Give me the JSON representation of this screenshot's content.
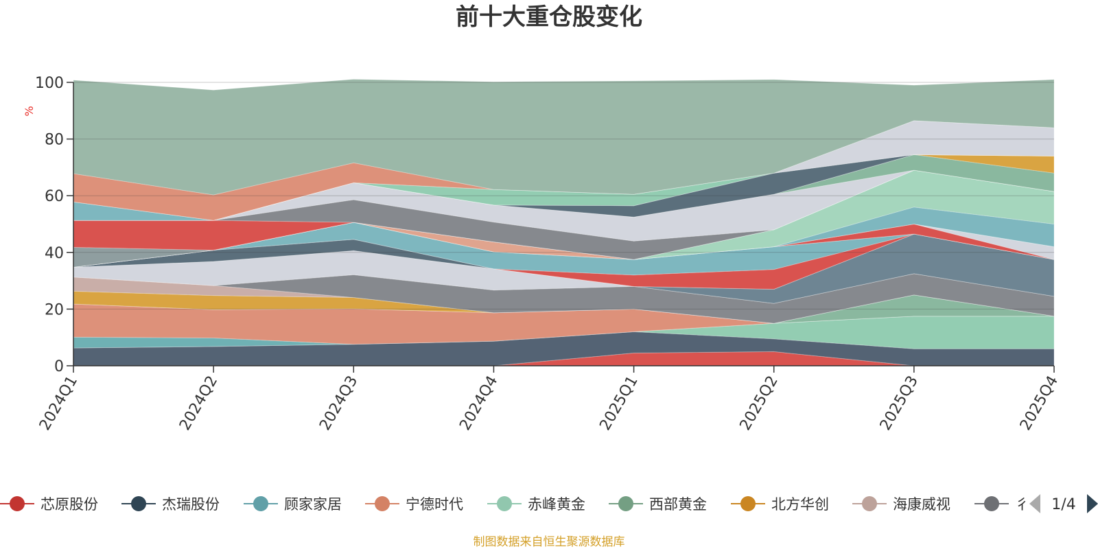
{
  "chart_data": {
    "type": "area",
    "stacked": true,
    "title": "前十大重仓股变化",
    "ylabel": "%",
    "ylim": [
      0,
      100
    ],
    "yticks": [
      0,
      20,
      40,
      60,
      80,
      100
    ],
    "categories": [
      "2024Q1",
      "2024Q2",
      "2024Q3",
      "2024Q4",
      "2025Q1",
      "2025Q2",
      "2025Q3",
      "2025Q4"
    ],
    "series": [
      {
        "name": "芯原股份",
        "color": "#d9534f",
        "values": [
          0,
          0,
          0,
          0,
          4.5,
          5,
          0,
          0
        ]
      },
      {
        "name": "",
        "color": "#546374",
        "values": [
          6.3,
          6.8,
          7.6,
          8.7,
          7.5,
          4.5,
          6.0,
          6.0
        ]
      },
      {
        "name": "",
        "color": "#93cdb2",
        "values": [
          0,
          0,
          0,
          0,
          0,
          5.5,
          11.5,
          11.5
        ]
      },
      {
        "name": "",
        "color": "#6fb1b4",
        "values": [
          3.8,
          3.0,
          0,
          0,
          0,
          0,
          0,
          0
        ]
      },
      {
        "name": "",
        "color": "#dd917a",
        "values": [
          11.7,
          10.0,
          12.5,
          10.0,
          8.0,
          0,
          0,
          0
        ]
      },
      {
        "name": "",
        "color": "#8ab89f",
        "values": [
          0,
          0,
          0,
          0,
          0,
          0,
          7.5,
          0
        ]
      },
      {
        "name": "",
        "color": "#d9a442",
        "values": [
          4.5,
          5.0,
          4.0,
          0,
          0,
          0,
          0,
          0
        ]
      },
      {
        "name": "",
        "color": "#c9aea8",
        "values": [
          5,
          3.5,
          0,
          0,
          0,
          0,
          0,
          0
        ]
      },
      {
        "name": "",
        "color": "#86898e",
        "values": [
          0,
          0,
          8,
          8,
          8,
          7,
          7.5,
          7
        ]
      },
      {
        "name": "",
        "color": "#d3d6de",
        "values": [
          3.5,
          8.5,
          8.5,
          7.5,
          0,
          0,
          0,
          0
        ]
      },
      {
        "name": "",
        "color": "#6e8593",
        "values": [
          0,
          0,
          0,
          0,
          0,
          5,
          14,
          13
        ]
      },
      {
        "name": "",
        "color": "#5b6f7c",
        "values": [
          0,
          4,
          4,
          0,
          0,
          0,
          0,
          0
        ]
      },
      {
        "name": "",
        "color": "#d9534f",
        "values": [
          0,
          0,
          0,
          0,
          4,
          7,
          0,
          0
        ]
      },
      {
        "name": "",
        "color": "#7eb7bf",
        "values": [
          0,
          0,
          6,
          6,
          5.5,
          8,
          0,
          0
        ]
      },
      {
        "name": "",
        "color": "#7eb7bf",
        "values": [
          0,
          0,
          0,
          0,
          0,
          0,
          0,
          0
        ]
      },
      {
        "name": "",
        "color": "#d9534f",
        "values": [
          0,
          0,
          0,
          0,
          0,
          0,
          3.5,
          0
        ]
      },
      {
        "name": "",
        "color": "#d3d6de",
        "values": [
          0,
          0,
          0,
          0,
          0,
          0,
          0,
          4.5
        ]
      },
      {
        "name": "",
        "color": "#e0a48e",
        "values": [
          0,
          0,
          0,
          3.5,
          0,
          0,
          0,
          0
        ]
      },
      {
        "name": "",
        "color": "#7eb7bf",
        "values": [
          0,
          0,
          0,
          0,
          0,
          0,
          6,
          8
        ]
      },
      {
        "name": "",
        "color": "#a5d6bd",
        "values": [
          0,
          0,
          0,
          0,
          0,
          6,
          13,
          11.5
        ]
      },
      {
        "name": "",
        "color": "#8f9ea0",
        "values": [
          7,
          0,
          0,
          0,
          0,
          0,
          0,
          0
        ]
      },
      {
        "name": "",
        "color": "#d9534f",
        "values": [
          9.5,
          10.5,
          0,
          0,
          0,
          0,
          0,
          0
        ]
      },
      {
        "name": "",
        "color": "#86898e",
        "values": [
          0,
          0,
          8,
          7,
          6.5,
          0,
          0,
          0
        ]
      },
      {
        "name": "",
        "color": "#d3d6de",
        "values": [
          0,
          0,
          6,
          6,
          8.5,
          12.5,
          0,
          0
        ]
      },
      {
        "name": "",
        "color": "#8ab89f",
        "values": [
          0,
          0,
          0,
          0,
          0,
          0,
          5.5,
          6.5
        ]
      },
      {
        "name": "",
        "color": "#d9a442",
        "values": [
          0,
          0,
          0,
          0,
          0,
          0,
          0,
          6
        ]
      },
      {
        "name": "",
        "color": "#5b6f7c",
        "values": [
          0,
          0,
          0,
          0,
          4,
          7.5,
          0,
          0
        ]
      },
      {
        "name": "",
        "color": "#7eb7bf",
        "values": [
          6.5,
          0,
          0,
          0,
          0,
          0,
          0,
          0
        ]
      },
      {
        "name": "",
        "color": "#93cdb2",
        "values": [
          0,
          0,
          0,
          5.5,
          4,
          0,
          0,
          0
        ]
      },
      {
        "name": "",
        "color": "#d3d6de",
        "values": [
          0,
          0,
          0,
          0,
          0,
          0,
          12,
          10
        ]
      },
      {
        "name": "",
        "color": "#dd917a",
        "values": [
          10,
          9,
          7,
          0,
          0,
          0,
          0,
          0
        ]
      },
      {
        "name": "",
        "color": "#9bb8a8",
        "values": [
          33,
          37,
          29.5,
          38,
          40,
          33,
          12.5,
          17
        ]
      }
    ],
    "legend": [
      {
        "name": "芯原股份",
        "color": "#c23531"
      },
      {
        "name": "杰瑞股份",
        "color": "#2f4554"
      },
      {
        "name": "顾家家居",
        "color": "#61a0a8"
      },
      {
        "name": "宁德时代",
        "color": "#d48265"
      },
      {
        "name": "赤峰黄金",
        "color": "#91c7ae"
      },
      {
        "name": "西部黄金",
        "color": "#749f83"
      },
      {
        "name": "北方华创",
        "color": "#ca8622"
      },
      {
        "name": "海康威视",
        "color": "#bda29a"
      },
      {
        "name": "彳",
        "color": "#6e7074"
      }
    ],
    "page_indicator": "1/4",
    "source": "制图数据来自恒生聚源数据库"
  }
}
